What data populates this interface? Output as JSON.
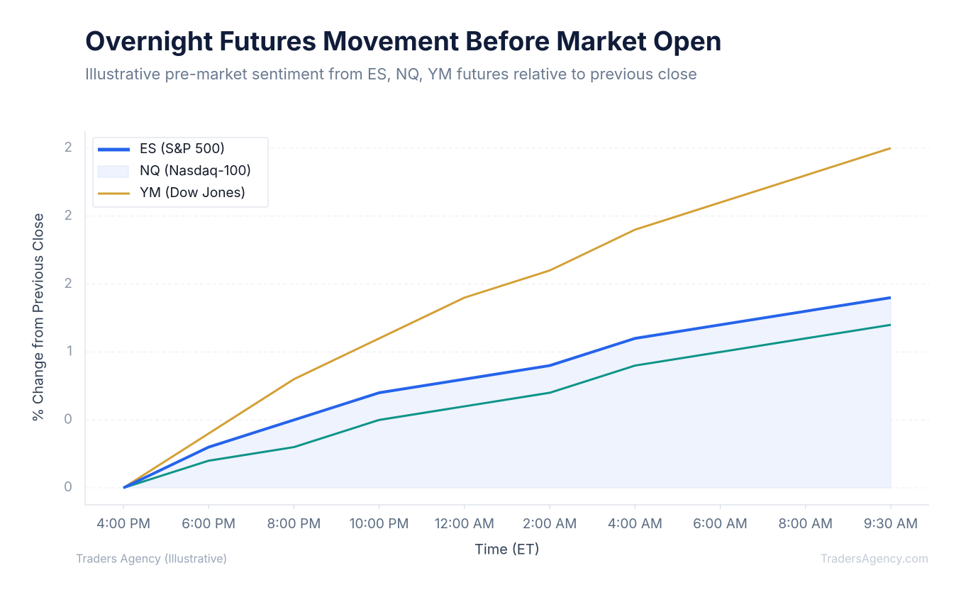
{
  "chart_data": {
    "type": "line",
    "title": "Overnight Futures Movement Before Market Open",
    "subtitle": "Illustrative pre-market sentiment from ES, NQ, YM futures relative to previous close",
    "x_label": "Time (ET)",
    "y_label": "% Change from Previous Close",
    "source": "Traders Agency (Illustrative)",
    "credit": "TradersAgency.com",
    "categories": [
      "4:00 PM",
      "6:00 PM",
      "8:00 PM",
      "10:00 PM",
      "12:00 AM",
      "2:00 AM",
      "4:00 AM",
      "6:00 AM",
      "8:00 AM",
      "9:30 AM"
    ],
    "series": [
      {
        "name": "ES (S&P 500)",
        "color": "#2563eb",
        "values": [
          0,
          0.3,
          0.5,
          0.7,
          0.8,
          0.9,
          1.1,
          1.2,
          1.3,
          1.4
        ]
      },
      {
        "name": "NQ (Nasdaq-100)",
        "color": "#0d9488",
        "fill": "#eef3fd",
        "values": [
          0,
          0.2,
          0.3,
          0.5,
          0.6,
          0.7,
          0.9,
          1.0,
          1.1,
          1.2
        ]
      },
      {
        "name": "YM (Dow Jones)",
        "color": "#d4a035",
        "values": [
          0,
          0.4,
          0.8,
          1.1,
          1.4,
          1.6,
          1.9,
          2.1,
          2.3,
          2.5
        ]
      }
    ],
    "ylim": [
      -0.125,
      2.625
    ],
    "yticks": [
      0,
      {
        "value": 0.5,
        "label": "0"
      },
      1,
      {
        "value": 1.5,
        "label": "2"
      },
      2,
      {
        "value": 2.5,
        "label": "2"
      }
    ],
    "grid": true,
    "legend": "top-left"
  }
}
